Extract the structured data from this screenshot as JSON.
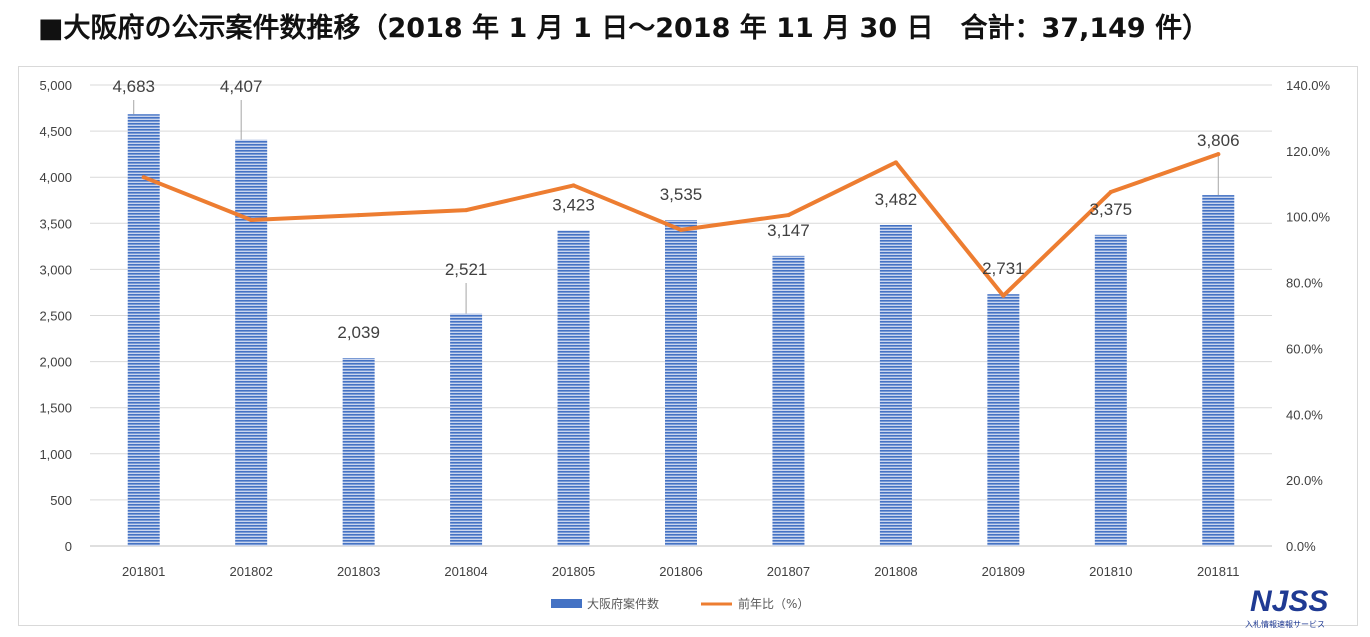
{
  "title": "■大阪府の公示案件数推移（2018 年 1 月 1 日～2018 年 11 月 30 日　合計：37,149 件）",
  "chart_data": {
    "type": "bar",
    "categories": [
      "201801",
      "201802",
      "201803",
      "201804",
      "201805",
      "201806",
      "201807",
      "201808",
      "201809",
      "201810",
      "201811"
    ],
    "series": [
      {
        "name": "大阪府案件数",
        "type": "bar",
        "axis": "left",
        "values": [
          4683,
          4407,
          2039,
          2521,
          3423,
          3535,
          3147,
          3482,
          2731,
          3375,
          3806
        ],
        "labels": [
          "4,683",
          "4,407",
          "2,039",
          "2,521",
          "3,423",
          "3,535",
          "3,147",
          "3,482",
          "2,731",
          "3,375",
          "3,806"
        ],
        "color": "#4472c4"
      },
      {
        "name": "前年比（%）",
        "type": "line",
        "axis": "right",
        "values": [
          112.0,
          99.0,
          100.5,
          102.0,
          109.5,
          96.0,
          100.5,
          116.5,
          76.0,
          107.5,
          119.0
        ],
        "color": "#ed7d31"
      }
    ],
    "y_left": {
      "min": 0,
      "max": 5000,
      "step": 500,
      "tick_labels": [
        "0",
        "500",
        "1,000",
        "1,500",
        "2,000",
        "2,500",
        "3,000",
        "3,500",
        "4,000",
        "4,500",
        "5,000"
      ]
    },
    "y_right": {
      "min": 0,
      "max": 140,
      "step": 20,
      "tick_labels": [
        "0.0%",
        "20.0%",
        "40.0%",
        "60.0%",
        "80.0%",
        "100.0%",
        "120.0%",
        "140.0%"
      ]
    },
    "grid": true,
    "legend_position": "bottom"
  },
  "logo": {
    "main": "NJSS",
    "sub": "入札情報速報サービス"
  }
}
